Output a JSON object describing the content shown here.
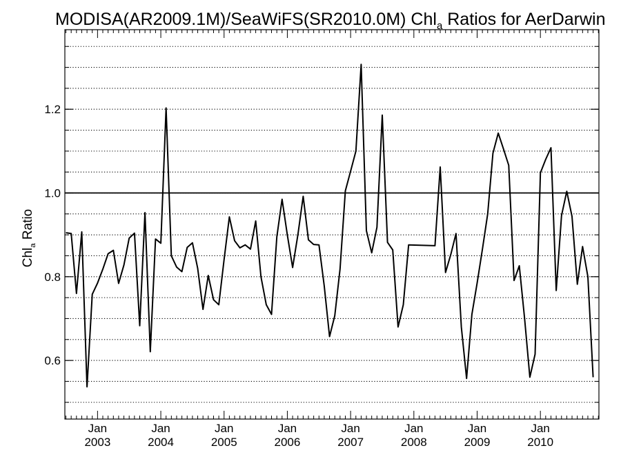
{
  "title": {
    "prefix": "MODISA(AR2009.1M)/SeaWiFS(SR2010.0M)  Chl",
    "subscript": "a",
    "suffix": " Ratios for AerDarwin"
  },
  "ylabel": {
    "prefix": "Chl",
    "subscript": "a",
    "suffix": " Ratio"
  },
  "chart_data": {
    "type": "line",
    "title": "MODISA(AR2009.1M)/SeaWiFS(SR2010.0M)  Chla Ratios for AerDarwin",
    "xlabel": "",
    "ylabel": "Chla Ratio",
    "xlim": [
      "2002-07",
      "2010-12"
    ],
    "ylim": [
      0.46,
      1.39
    ],
    "grid": "horizontal dotted lines every 0.05",
    "reference_line": 1.0,
    "y_ticks": [
      {
        "value": 0.6,
        "label": "0.6"
      },
      {
        "value": 0.8,
        "label": "0.8"
      },
      {
        "value": 1.0,
        "label": "1.0"
      },
      {
        "value": 1.2,
        "label": "1.2"
      }
    ],
    "x_ticks": [
      {
        "date": "2003-01",
        "month": "Jan",
        "year": "2003"
      },
      {
        "date": "2004-01",
        "month": "Jan",
        "year": "2004"
      },
      {
        "date": "2005-01",
        "month": "Jan",
        "year": "2005"
      },
      {
        "date": "2006-01",
        "month": "Jan",
        "year": "2006"
      },
      {
        "date": "2007-01",
        "month": "Jan",
        "year": "2007"
      },
      {
        "date": "2008-01",
        "month": "Jan",
        "year": "2008"
      },
      {
        "date": "2009-01",
        "month": "Jan",
        "year": "2009"
      },
      {
        "date": "2010-01",
        "month": "Jan",
        "year": "2010"
      }
    ],
    "series": [
      {
        "points": [
          [
            "2002-07",
            0.905
          ],
          [
            "2002-08",
            0.903
          ],
          [
            "2002-09",
            0.76
          ],
          [
            "2002-10",
            0.907
          ],
          [
            "2002-11",
            0.537
          ],
          [
            "2002-12",
            0.758
          ],
          [
            "2003-01",
            0.785
          ],
          [
            "2003-02",
            0.818
          ],
          [
            "2003-03",
            0.855
          ],
          [
            "2003-04",
            0.863
          ],
          [
            "2003-05",
            0.784
          ],
          [
            "2003-06",
            0.828
          ],
          [
            "2003-07",
            0.892
          ],
          [
            "2003-08",
            0.904
          ],
          [
            "2003-09",
            0.683
          ],
          [
            "2003-10",
            0.953
          ],
          [
            "2003-11",
            0.621
          ],
          [
            "2003-12",
            0.89
          ],
          [
            "2004-01",
            0.88
          ],
          [
            "2004-02",
            1.203
          ],
          [
            "2004-03",
            0.85
          ],
          [
            "2004-04",
            0.823
          ],
          [
            "2004-05",
            0.812
          ],
          [
            "2004-06",
            0.87
          ],
          [
            "2004-07",
            0.881
          ],
          [
            "2004-08",
            0.82
          ],
          [
            "2004-09",
            0.722
          ],
          [
            "2004-10",
            0.803
          ],
          [
            "2004-11",
            0.745
          ],
          [
            "2004-12",
            0.733
          ],
          [
            "2005-01",
            0.84
          ],
          [
            "2005-02",
            0.943
          ],
          [
            "2005-03",
            0.886
          ],
          [
            "2005-04",
            0.869
          ],
          [
            "2005-05",
            0.876
          ],
          [
            "2005-06",
            0.866
          ],
          [
            "2005-07",
            0.933
          ],
          [
            "2005-08",
            0.8
          ],
          [
            "2005-09",
            0.733
          ],
          [
            "2005-10",
            0.71
          ],
          [
            "2005-11",
            0.895
          ],
          [
            "2005-12",
            0.985
          ],
          [
            "2006-01",
            0.9
          ],
          [
            "2006-02",
            0.822
          ],
          [
            "2006-03",
            0.9
          ],
          [
            "2006-04",
            0.992
          ],
          [
            "2006-05",
            0.888
          ],
          [
            "2006-06",
            0.877
          ],
          [
            "2006-07",
            0.876
          ],
          [
            "2006-08",
            0.778
          ],
          [
            "2006-09",
            0.657
          ],
          [
            "2006-10",
            0.707
          ],
          [
            "2006-11",
            0.818
          ],
          [
            "2006-12",
            1.005
          ],
          [
            "2007-01",
            1.052
          ],
          [
            "2007-02",
            1.1
          ],
          [
            "2007-03",
            1.307
          ],
          [
            "2007-04",
            0.91
          ],
          [
            "2007-05",
            0.857
          ],
          [
            "2007-06",
            0.918
          ],
          [
            "2007-07",
            1.186
          ],
          [
            "2007-08",
            0.882
          ],
          [
            "2007-09",
            0.864
          ],
          [
            "2007-10",
            0.68
          ],
          [
            "2007-11",
            0.733
          ],
          [
            "2007-12",
            0.876
          ],
          [
            "2008-05",
            0.874
          ],
          [
            "2008-06",
            1.062
          ],
          [
            "2008-07",
            0.81
          ],
          [
            "2008-08",
            0.853
          ],
          [
            "2008-09",
            0.903
          ],
          [
            "2008-10",
            0.68
          ],
          [
            "2008-11",
            0.557
          ],
          [
            "2008-12",
            0.71
          ],
          [
            "2009-01",
            0.785
          ],
          [
            "2009-02",
            0.865
          ],
          [
            "2009-03",
            0.95
          ],
          [
            "2009-04",
            1.095
          ],
          [
            "2009-05",
            1.143
          ],
          [
            "2009-06",
            1.105
          ],
          [
            "2009-07",
            1.066
          ],
          [
            "2009-08",
            0.791
          ],
          [
            "2009-09",
            0.826
          ],
          [
            "2009-10",
            0.7
          ],
          [
            "2009-11",
            0.56
          ],
          [
            "2009-12",
            0.615
          ],
          [
            "2010-01",
            1.048
          ],
          [
            "2010-02",
            1.08
          ],
          [
            "2010-03",
            1.108
          ],
          [
            "2010-04",
            0.767
          ],
          [
            "2010-05",
            0.946
          ],
          [
            "2010-06",
            1.004
          ],
          [
            "2010-07",
            0.944
          ],
          [
            "2010-08",
            0.782
          ],
          [
            "2010-09",
            0.872
          ],
          [
            "2010-10",
            0.8
          ],
          [
            "2010-11",
            0.56
          ]
        ]
      }
    ]
  }
}
